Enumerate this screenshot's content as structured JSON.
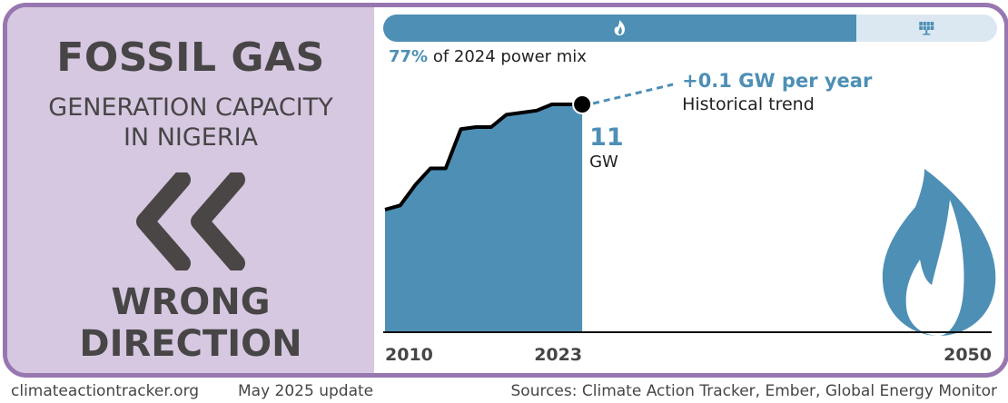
{
  "left_panel": {
    "title": "FOSSIL GAS",
    "subtitle_line1": "GENERATION CAPACITY",
    "subtitle_line2": "IN NIGERIA",
    "direction_icon": "double-chevron-left-icon",
    "verdict_line1": "WRONG",
    "verdict_line2": "DIRECTION"
  },
  "power_mix": {
    "share_percent": 77,
    "share_label": "77%",
    "label_rest": " of 2024 power mix",
    "fossil_icon": "flame-icon",
    "renewable_icon": "solar-panel-icon"
  },
  "colors": {
    "frame": "#9877b0",
    "left_panel_bg": "#d6c8e0",
    "accent_blue": "#4e8fb5",
    "light_blue": "#dce8f1",
    "dark_text": "#474546"
  },
  "chart_data": {
    "type": "area",
    "title": "Fossil gas generation capacity in Nigeria",
    "unit": "GW",
    "x": [
      2010,
      2011,
      2012,
      2013,
      2014,
      2015,
      2016,
      2017,
      2018,
      2019,
      2020,
      2021,
      2022,
      2023
    ],
    "values": [
      5.9,
      6.1,
      7.1,
      7.9,
      7.9,
      9.8,
      9.9,
      9.9,
      10.5,
      10.6,
      10.7,
      11.0,
      11.0,
      11.0
    ],
    "xlim": [
      2010,
      2050
    ],
    "ylim": [
      0,
      13
    ],
    "x_tick_labels": [
      "2010",
      "2023",
      "2050"
    ],
    "x_ticks": [
      2010,
      2023,
      2050
    ],
    "end_value_label": "11",
    "end_unit_label": "GW",
    "trend": {
      "rate_label": "+0.1 GW per year",
      "description": "Historical trend",
      "rate_gw_per_year": 0.1
    },
    "decorative_icon": "flame-icon",
    "grid": false
  },
  "footer": {
    "site": "climateactiontracker.org",
    "update": "May 2025 update",
    "sources": "Sources: Climate Action Tracker, Ember, Global Energy Monitor"
  }
}
